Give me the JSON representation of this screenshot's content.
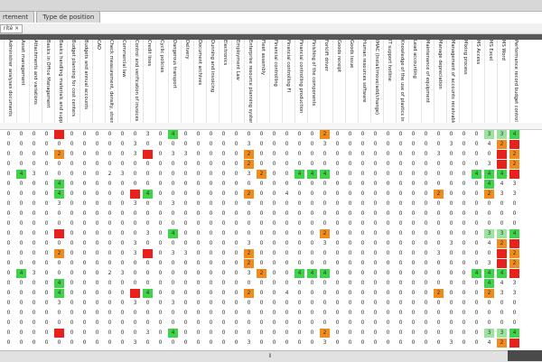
{
  "tabs": [
    "rtement",
    "Type de position"
  ],
  "filter_chip": "rité ×",
  "columns": [
    "Administrer analyses documents",
    "Asset management",
    "Attachments and variations",
    "Basics in Office Management",
    "Basics handling materials and supplies",
    "Budget planning for cost centers",
    "Budgets and annual accounts",
    "CAD",
    "Check measurement, density, strength and temperature",
    "Commercial law",
    "Control and verification of invoices",
    "Credit lines",
    "Cyclic policies",
    "Dangerous transport",
    "Delivery",
    "Document archives",
    "Dunning and invoicing",
    "Electronics",
    "Employment Law",
    "Enterprise resource planning systems",
    "Fleet assembly",
    "Financial controlling",
    "Financial controlling FI",
    "Financial controlling production",
    "Finishing of the components",
    "Forklift driver",
    "Goods receipt",
    "Goods issue",
    "Human resources software",
    "IMAC (Install/move/add/change)",
    "IT support hotline",
    "Knowledge of the use of plastics in the industry",
    "Lead accounting",
    "Maintenance of equipment",
    "Manage depreciation",
    "Management of accounts receivable",
    "Mixing process",
    "MS Access",
    "MS Excel",
    "MS Word",
    "Performance record budget control"
  ],
  "rows": [
    [
      "0",
      "0",
      "0",
      "0",
      "R",
      "0",
      "0",
      "0",
      "0",
      "0",
      "0",
      "3",
      "0",
      "G",
      "0",
      "0",
      "0",
      "0",
      "0",
      "0",
      "0",
      "0",
      "0",
      "0",
      "0",
      "O",
      "0",
      "0",
      "0",
      "0",
      "0",
      "0",
      "0",
      "0",
      "0",
      "0",
      "0",
      "0",
      "G3",
      "G3",
      "G4"
    ],
    [
      "0",
      "0",
      "0",
      "0",
      "0",
      "0",
      "0",
      "0",
      "0",
      "0",
      "3",
      "0",
      "0",
      "0",
      "0",
      "0",
      "0",
      "0",
      "0",
      "3",
      "0",
      "0",
      "0",
      "0",
      "0",
      "3",
      "0",
      "0",
      "0",
      "0",
      "0",
      "0",
      "0",
      "0",
      "0",
      "3",
      "0",
      "0",
      "4",
      "O",
      "R"
    ],
    [
      "0",
      "0",
      "0",
      "0",
      "O",
      "0",
      "0",
      "0",
      "0",
      "0",
      "3",
      "R",
      "0",
      "3",
      "3",
      "0",
      "0",
      "0",
      "0",
      "O",
      "0",
      "0",
      "0",
      "0",
      "0",
      "0",
      "0",
      "0",
      "0",
      "0",
      "0",
      "0",
      "0",
      "0",
      "3",
      "0",
      "0",
      "0",
      "0",
      "R",
      "O"
    ],
    [
      "0",
      "0",
      "0",
      "0",
      "0",
      "0",
      "0",
      "0",
      "0",
      "0",
      "0",
      "0",
      "0",
      "0",
      "0",
      "0",
      "0",
      "0",
      "0",
      "O",
      "0",
      "0",
      "0",
      "0",
      "0",
      "0",
      "0",
      "0",
      "0",
      "0",
      "0",
      "0",
      "0",
      "0",
      "0",
      "0",
      "0",
      "0",
      "3",
      "R",
      "O"
    ],
    [
      "0",
      "G",
      "3",
      "0",
      "0",
      "0",
      "0",
      "0",
      "2",
      "3",
      "0",
      "0",
      "0",
      "0",
      "0",
      "0",
      "0",
      "0",
      "0",
      "3",
      "O",
      "0",
      "0",
      "G",
      "G",
      "G",
      "0",
      "0",
      "0",
      "0",
      "0",
      "0",
      "0",
      "0",
      "0",
      "0",
      "0",
      "G",
      "G",
      "G",
      "R"
    ],
    [
      "0",
      "0",
      "0",
      "0",
      "G",
      "0",
      "0",
      "0",
      "0",
      "0",
      "0",
      "0",
      "0",
      "0",
      "0",
      "0",
      "0",
      "0",
      "0",
      "0",
      "0",
      "0",
      "0",
      "0",
      "0",
      "0",
      "0",
      "0",
      "0",
      "0",
      "0",
      "0",
      "0",
      "0",
      "0",
      "0",
      "0",
      "0",
      "G",
      "4",
      "3"
    ],
    [
      "0",
      "0",
      "0",
      "0",
      "G",
      "0",
      "0",
      "0",
      "0",
      "0",
      "R",
      "G",
      "0",
      "0",
      "0",
      "0",
      "0",
      "0",
      "0",
      "O",
      "0",
      "0",
      "4",
      "0",
      "0",
      "0",
      "0",
      "0",
      "0",
      "0",
      "0",
      "0",
      "0",
      "0",
      "O",
      "0",
      "0",
      "0",
      "O",
      "3",
      "3"
    ],
    [
      "0",
      "0",
      "0",
      "0",
      "3",
      "0",
      "0",
      "0",
      "0",
      "0",
      "3",
      "0",
      "0",
      "3",
      "0",
      "0",
      "0",
      "0",
      "0",
      "0",
      "0",
      "0",
      "0",
      "0",
      "0",
      "0",
      "0",
      "0",
      "0",
      "0",
      "0",
      "0",
      "0",
      "0",
      "0",
      "0",
      "0",
      "0",
      "0",
      "0",
      "0"
    ],
    [
      "0",
      "0",
      "0",
      "0",
      "0",
      "0",
      "0",
      "0",
      "0",
      "0",
      "0",
      "0",
      "0",
      "0",
      "0",
      "0",
      "0",
      "0",
      "0",
      "0",
      "0",
      "0",
      "0",
      "0",
      "0",
      "0",
      "0",
      "0",
      "0",
      "0",
      "0",
      "0",
      "0",
      "0",
      "0",
      "0",
      "0",
      "0",
      "0",
      "0",
      "0"
    ],
    [
      "0",
      "0",
      "0",
      "0",
      "0",
      "0",
      "0",
      "0",
      "0",
      "0",
      "0",
      "0",
      "0",
      "0",
      "0",
      "0",
      "0",
      "0",
      "0",
      "0",
      "0",
      "0",
      "0",
      "0",
      "0",
      "0",
      "0",
      "0",
      "0",
      "0",
      "0",
      "0",
      "0",
      "0",
      "0",
      "0",
      "0",
      "0",
      "0",
      "0",
      "0"
    ]
  ],
  "legend_colors": {
    "R": "#e8211c",
    "O": "#f08b1c",
    "G": "#3fd34a",
    "g3": "#9be39f",
    "page_bg": "#ffffff"
  }
}
